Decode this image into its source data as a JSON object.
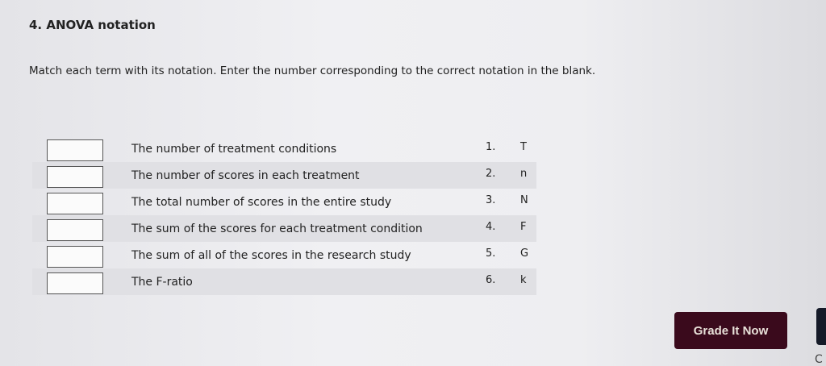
{
  "title": "4. ANOVA notation",
  "instructions": "Match each term with its notation. Enter the number corresponding to the correct notation in the blank.",
  "rows": [
    {
      "term": "The number of treatment conditions",
      "num": "1.",
      "notation": "T",
      "answer": ""
    },
    {
      "term": "The number of scores in each treatment",
      "num": "2.",
      "notation": "n",
      "answer": ""
    },
    {
      "term": "The total number of scores in the entire study",
      "num": "3.",
      "notation": "N",
      "answer": ""
    },
    {
      "term": "The sum of the scores for each treatment condition",
      "num": "4.",
      "notation": "F",
      "answer": ""
    },
    {
      "term": "The sum of all of the scores in the research study",
      "num": "5.",
      "notation": "G",
      "answer": ""
    },
    {
      "term": "The F-ratio",
      "num": "6.",
      "notation": "k",
      "answer": ""
    }
  ],
  "grade_button": "Grade It Now",
  "cut_text": "C",
  "colors": {
    "button": "#3a0a1c",
    "row_shade": "#e0e0e4"
  }
}
